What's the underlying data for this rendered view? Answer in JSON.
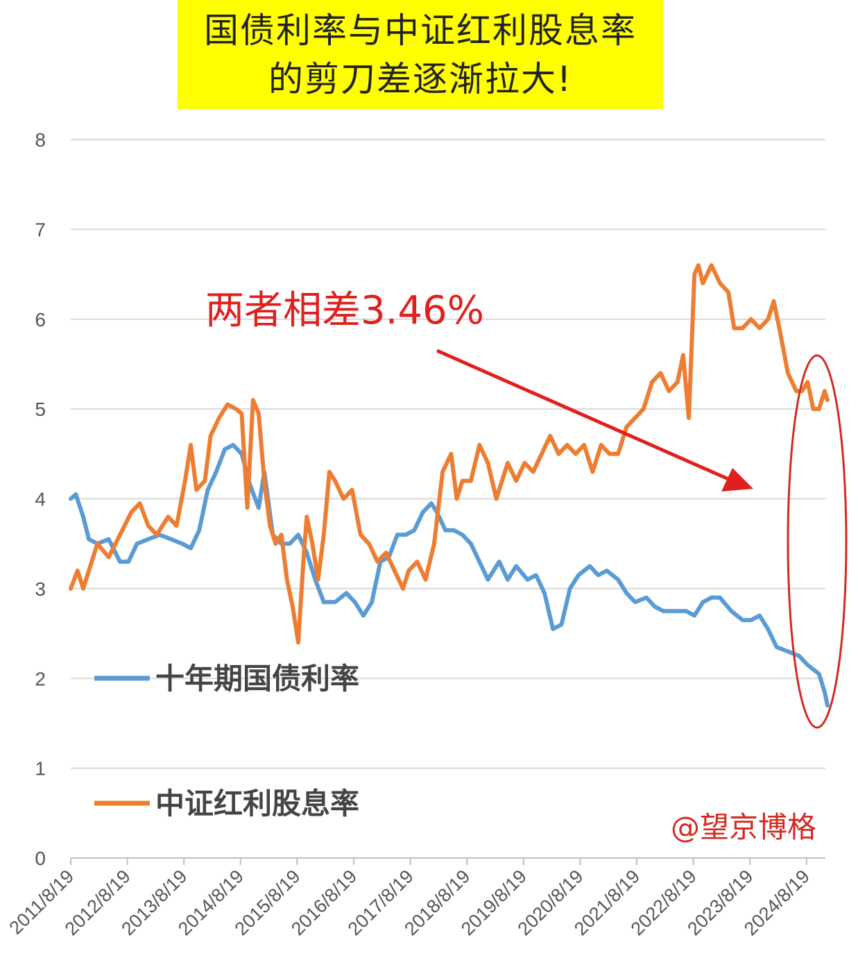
{
  "title": {
    "line1": "国债利率与中证红利股息率",
    "line2": "的剪刀差逐渐拉大!"
  },
  "annotation": "两者相差3.46%",
  "watermark": "@望京博格",
  "colors": {
    "bond": "#5b9bd5",
    "dividend": "#ed7d31",
    "annotation": "#e0201c",
    "title_bg": "#ffff00",
    "grid": "#d9d9d9"
  },
  "chart_data": {
    "type": "line",
    "title": "国债利率与中证红利股息率的剪刀差逐渐拉大!",
    "xlabel": "",
    "ylabel": "",
    "ylim": [
      0,
      8
    ],
    "yticks": [
      0,
      1,
      2,
      3,
      4,
      5,
      6,
      7,
      8
    ],
    "xlim": [
      2011.63,
      2025.0
    ],
    "xticks": [
      "2011/8/19",
      "2012/8/19",
      "2013/8/19",
      "2014/8/19",
      "2015/8/19",
      "2016/8/19",
      "2017/8/19",
      "2018/8/19",
      "2019/8/19",
      "2020/8/19",
      "2021/8/19",
      "2022/8/19",
      "2023/8/19",
      "2024/8/19"
    ],
    "grid": true,
    "legend_position": "bottom-left",
    "series": [
      {
        "name": "十年期国债利率",
        "color": "#5b9bd5",
        "x": [
          2011.63,
          2011.72,
          2011.85,
          2011.95,
          2012.1,
          2012.3,
          2012.5,
          2012.65,
          2012.8,
          2013.0,
          2013.2,
          2013.4,
          2013.6,
          2013.75,
          2013.9,
          2014.05,
          2014.2,
          2014.35,
          2014.5,
          2014.65,
          2014.8,
          2014.95,
          2015.05,
          2015.2,
          2015.35,
          2015.5,
          2015.65,
          2015.8,
          2015.95,
          2016.1,
          2016.3,
          2016.5,
          2016.65,
          2016.8,
          2016.95,
          2017.1,
          2017.25,
          2017.4,
          2017.55,
          2017.7,
          2017.85,
          2018.0,
          2018.1,
          2018.25,
          2018.4,
          2018.55,
          2018.7,
          2018.85,
          2019.0,
          2019.2,
          2019.35,
          2019.5,
          2019.7,
          2019.85,
          2020.0,
          2020.15,
          2020.3,
          2020.45,
          2020.6,
          2020.8,
          2020.95,
          2021.1,
          2021.3,
          2021.45,
          2021.6,
          2021.8,
          2021.95,
          2022.1,
          2022.3,
          2022.5,
          2022.65,
          2022.8,
          2022.95,
          2023.1,
          2023.3,
          2023.5,
          2023.65,
          2023.8,
          2023.95,
          2024.1,
          2024.3,
          2024.5,
          2024.65,
          2024.75,
          2024.85,
          2024.95,
          2025.0
        ],
        "values": [
          4.0,
          4.05,
          3.8,
          3.55,
          3.5,
          3.55,
          3.3,
          3.3,
          3.5,
          3.55,
          3.6,
          3.55,
          3.5,
          3.45,
          3.65,
          4.1,
          4.3,
          4.55,
          4.6,
          4.5,
          4.15,
          3.9,
          4.3,
          3.6,
          3.5,
          3.5,
          3.6,
          3.4,
          3.1,
          2.85,
          2.85,
          2.95,
          2.85,
          2.7,
          2.85,
          3.3,
          3.35,
          3.6,
          3.6,
          3.65,
          3.85,
          3.95,
          3.85,
          3.65,
          3.65,
          3.6,
          3.5,
          3.3,
          3.1,
          3.3,
          3.1,
          3.25,
          3.1,
          3.15,
          2.95,
          2.55,
          2.6,
          3.0,
          3.15,
          3.25,
          3.15,
          3.2,
          3.1,
          2.95,
          2.85,
          2.9,
          2.8,
          2.75,
          2.75,
          2.75,
          2.7,
          2.85,
          2.9,
          2.9,
          2.75,
          2.65,
          2.65,
          2.7,
          2.55,
          2.35,
          2.3,
          2.25,
          2.15,
          2.1,
          2.05,
          1.85,
          1.7
        ]
      },
      {
        "name": "中证红利股息率",
        "color": "#ed7d31",
        "x": [
          2011.63,
          2011.75,
          2011.85,
          2012.0,
          2012.1,
          2012.3,
          2012.5,
          2012.7,
          2012.85,
          2013.0,
          2013.15,
          2013.35,
          2013.5,
          2013.65,
          2013.75,
          2013.85,
          2014.0,
          2014.1,
          2014.25,
          2014.4,
          2014.55,
          2014.65,
          2014.75,
          2014.85,
          2014.95,
          2015.05,
          2015.15,
          2015.25,
          2015.35,
          2015.45,
          2015.55,
          2015.65,
          2015.75,
          2015.8,
          2015.9,
          2016.0,
          2016.1,
          2016.2,
          2016.3,
          2016.45,
          2016.6,
          2016.75,
          2016.9,
          2017.05,
          2017.2,
          2017.35,
          2017.5,
          2017.6,
          2017.75,
          2017.9,
          2018.05,
          2018.2,
          2018.35,
          2018.45,
          2018.55,
          2018.7,
          2018.85,
          2019.0,
          2019.15,
          2019.35,
          2019.5,
          2019.65,
          2019.8,
          2019.95,
          2020.1,
          2020.25,
          2020.4,
          2020.55,
          2020.7,
          2020.85,
          2021.0,
          2021.15,
          2021.3,
          2021.45,
          2021.6,
          2021.75,
          2021.9,
          2022.05,
          2022.2,
          2022.35,
          2022.45,
          2022.55,
          2022.65,
          2022.72,
          2022.8,
          2022.95,
          2023.1,
          2023.25,
          2023.35,
          2023.5,
          2023.65,
          2023.8,
          2023.95,
          2024.05,
          2024.15,
          2024.3,
          2024.45,
          2024.55,
          2024.65,
          2024.75,
          2024.85,
          2024.95,
          2025.0
        ],
        "values": [
          3.0,
          3.2,
          3.0,
          3.3,
          3.5,
          3.35,
          3.6,
          3.85,
          3.95,
          3.7,
          3.6,
          3.8,
          3.7,
          4.2,
          4.6,
          4.1,
          4.2,
          4.7,
          4.9,
          5.05,
          5.0,
          4.95,
          3.9,
          5.1,
          4.95,
          4.2,
          3.7,
          3.5,
          3.6,
          3.1,
          2.8,
          2.4,
          3.4,
          3.8,
          3.5,
          3.1,
          3.6,
          4.3,
          4.2,
          4.0,
          4.1,
          3.6,
          3.5,
          3.3,
          3.4,
          3.2,
          3.0,
          3.2,
          3.3,
          3.1,
          3.5,
          4.3,
          4.5,
          4.0,
          4.2,
          4.2,
          4.6,
          4.4,
          4.0,
          4.4,
          4.2,
          4.4,
          4.3,
          4.5,
          4.7,
          4.5,
          4.6,
          4.5,
          4.6,
          4.3,
          4.6,
          4.5,
          4.5,
          4.8,
          4.9,
          5.0,
          5.3,
          5.4,
          5.2,
          5.3,
          5.6,
          4.9,
          6.5,
          6.6,
          6.4,
          6.6,
          6.4,
          6.3,
          5.9,
          5.9,
          6.0,
          5.9,
          6.0,
          6.2,
          5.9,
          5.4,
          5.2,
          5.2,
          5.3,
          5.0,
          5.0,
          5.2,
          5.1
        ]
      }
    ]
  }
}
